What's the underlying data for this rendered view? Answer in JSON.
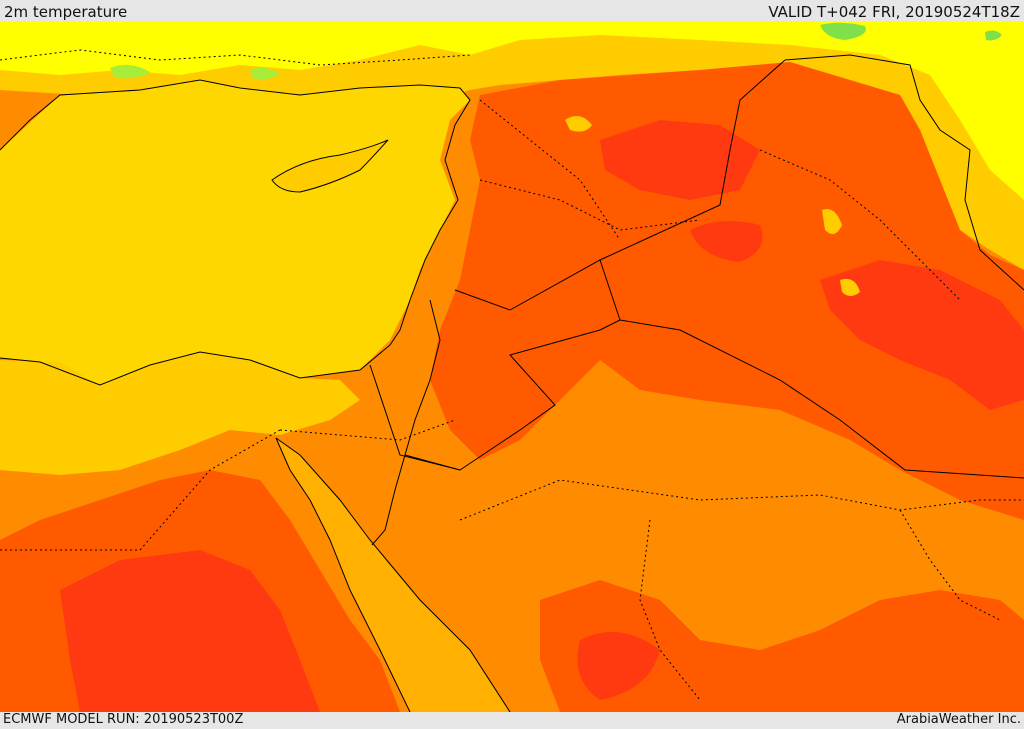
{
  "header": {
    "title": "2m temperature",
    "valid": "VALID T+042 FRI, 20190524T18Z"
  },
  "footer": {
    "model_run": "ECMWF MODEL RUN: 20190523T00Z",
    "credit": "ArabiaWeather Inc."
  },
  "colors": {
    "sea": "#ffd700",
    "cool_green": "#7fe04a",
    "light_yellow": "#ffff00",
    "gold": "#ffcc00",
    "light_orange": "#ffa500",
    "orange": "#ff8c00",
    "dark_orange": "#ff5a00",
    "red": "#ff3a10",
    "border": "#000000"
  }
}
